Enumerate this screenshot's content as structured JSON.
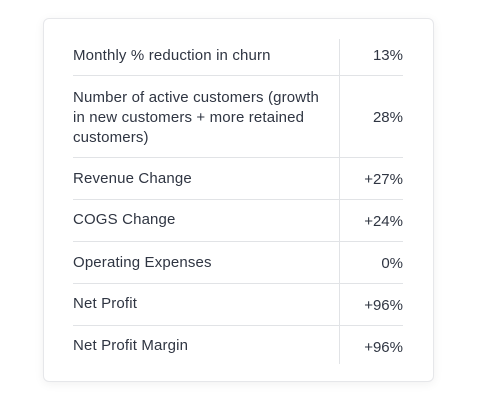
{
  "table": {
    "rows": [
      {
        "label": "Monthly % reduction in churn",
        "value": "13%"
      },
      {
        "label": "Number of active customers (growth in new customers + more retained customers)",
        "value": "28%"
      },
      {
        "label": "Revenue Change",
        "value": "+27%"
      },
      {
        "label": "COGS Change",
        "value": "+24%"
      },
      {
        "label": "Operating Expenses",
        "value": "0%"
      },
      {
        "label": "Net Profit",
        "value": "+96%"
      },
      {
        "label": "Net Profit Margin",
        "value": "+96%"
      }
    ]
  }
}
